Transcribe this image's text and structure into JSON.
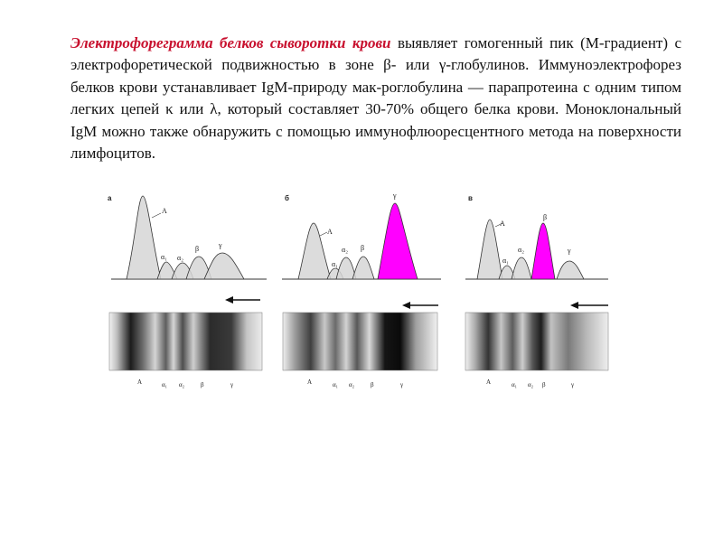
{
  "text": {
    "lead_term": "Электрофореграмма белков сыворотки крови",
    "body": " выявляет гомогенный пик (М-градиент) с электрофоретической подвижностью в зоне β- или γ-глобулинов. Иммуноэлектрофорез белков крови устанавливает IgM-природу мак-роглобулина — парапротеина с одним типом легких цепей κ или λ, который составляет 30-70% общего белка крови. Моноклональный IgM можно также обнаружить с помощью иммунофлюоресцентного метода на поверхности лимфоцитов."
  },
  "figure": {
    "colors": {
      "normal_peak": "#d6d6d6",
      "m_peak": "#ff00ff",
      "outline": "#333333"
    },
    "panels": [
      {
        "letter": "а",
        "peaks": {
          "A": "A",
          "a1": "α₁",
          "a2": "α₂",
          "b": "β",
          "g": "γ"
        },
        "bands": {
          "A": "A",
          "a1": "α₁",
          "a2": "α₂",
          "b": "β",
          "g": "γ"
        }
      },
      {
        "letter": "б",
        "peaks": {
          "A": "A",
          "a1": "α₁",
          "a2": "α₂",
          "b": "β",
          "g": "γ"
        },
        "bands": {
          "A": "A",
          "a1": "α₁",
          "a2": "α₂",
          "b": "β",
          "g": "γ"
        }
      },
      {
        "letter": "в",
        "peaks": {
          "A": "A",
          "a1": "α₁",
          "a2": "α₂",
          "b": "β",
          "g": "γ"
        },
        "bands": {
          "A": "A",
          "a1": "α₁",
          "a2": "α₂",
          "b": "β",
          "g": "γ"
        }
      }
    ]
  }
}
